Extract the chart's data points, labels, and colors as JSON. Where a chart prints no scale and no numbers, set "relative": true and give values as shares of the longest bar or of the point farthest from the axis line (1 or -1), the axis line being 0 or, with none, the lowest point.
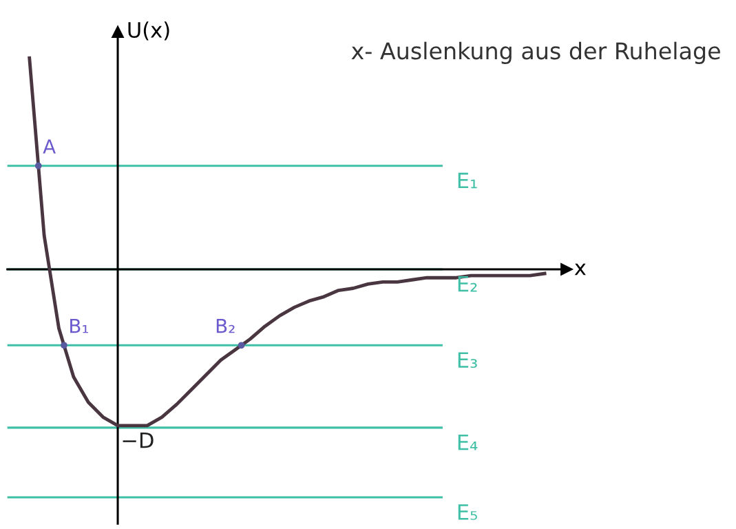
{
  "chart_data": {
    "type": "line",
    "relative": true,
    "ylabel": "U(x)",
    "xlabel": "x",
    "categories": [
      null,
      null,
      null,
      null,
      null,
      null,
      null,
      null,
      null,
      null,
      null,
      null,
      null,
      null,
      null,
      null,
      null,
      null,
      null,
      null,
      null,
      null,
      null,
      null,
      null,
      null,
      null,
      null,
      null,
      null,
      null,
      null,
      null,
      null,
      null,
      null
    ],
    "series": [
      {
        "color": "#4a3640",
        "values": [
          1.0,
          0.16,
          -0.28,
          -0.51,
          -0.63,
          -0.7,
          -0.74,
          -0.74,
          -0.74,
          -0.7,
          -0.64,
          -0.57,
          -0.5,
          -0.43,
          -0.38,
          -0.33,
          -0.27,
          -0.22,
          -0.18,
          -0.15,
          -0.13,
          -0.1,
          -0.09,
          -0.07,
          -0.06,
          -0.06,
          -0.05,
          -0.04,
          -0.04,
          -0.04,
          -0.03,
          -0.03,
          -0.03,
          -0.03,
          -0.03,
          -0.02
        ]
      }
    ],
    "ref_lines": [
      {
        "axis": "y",
        "value": 0.49,
        "label": "E₁",
        "color": "#3fbfa6"
      },
      {
        "axis": "y",
        "value": 0,
        "label": "E₂",
        "color": "#3fbfa6"
      },
      {
        "axis": "y",
        "value": -0.36,
        "label": "E₃",
        "color": "#3fbfa6"
      },
      {
        "axis": "y",
        "value": -0.75,
        "label": "E₄",
        "color": "#3fbfa6"
      },
      {
        "axis": "y",
        "value": -1.08,
        "label": "E₅",
        "color": "#3fbfa6"
      }
    ],
    "annotations": [
      {
        "text": "A",
        "y": 0.49
      },
      {
        "text": "B₁",
        "y": -0.36
      },
      {
        "text": "B₂",
        "y": -0.36
      },
      {
        "text": "−D",
        "y": -0.74
      },
      "x- Auslenkung aus der Ruhelage"
    ],
    "marker": "none",
    "line_style": "solid"
  }
}
